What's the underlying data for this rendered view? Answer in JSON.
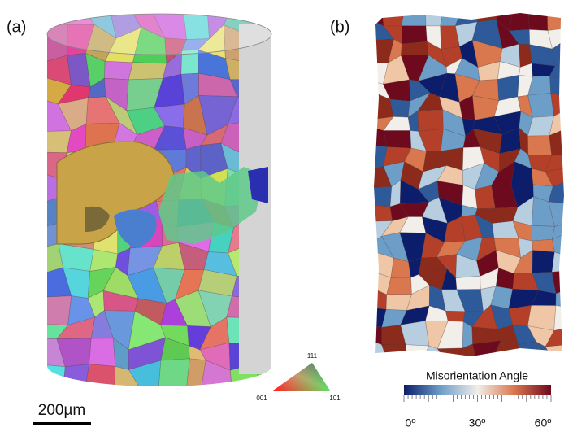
{
  "panels": {
    "a": {
      "label": "(a)",
      "scale_bar": "200µm",
      "ipf": {
        "top": "111",
        "left": "001",
        "right": "101"
      }
    },
    "b": {
      "label": "(b)",
      "colorbar": {
        "title": "Misorientation Angle",
        "ticks": [
          "0º",
          "30º",
          "60º"
        ]
      }
    }
  }
}
